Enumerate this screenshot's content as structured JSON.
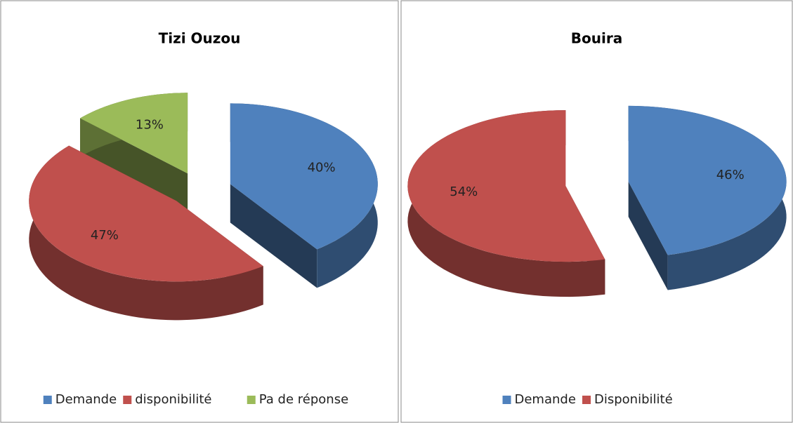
{
  "chart_data": [
    {
      "type": "pie",
      "title": "Tizi Ouzou",
      "categories": [
        "Demande",
        "disponibilité",
        "Pa de réponse"
      ],
      "values": [
        40,
        47,
        13
      ],
      "value_labels": [
        "40%",
        "47%",
        "13%"
      ],
      "colors": [
        "#4f81bd",
        "#c0504d",
        "#9bbb59"
      ],
      "legend": "bottom"
    },
    {
      "type": "pie",
      "title": "Bouira",
      "categories": [
        "Demande",
        "Disponibilité"
      ],
      "values": [
        46,
        54
      ],
      "value_labels": [
        "46%",
        "54%"
      ],
      "colors": [
        "#4f81bd",
        "#c0504d"
      ],
      "legend": "bottom"
    }
  ]
}
